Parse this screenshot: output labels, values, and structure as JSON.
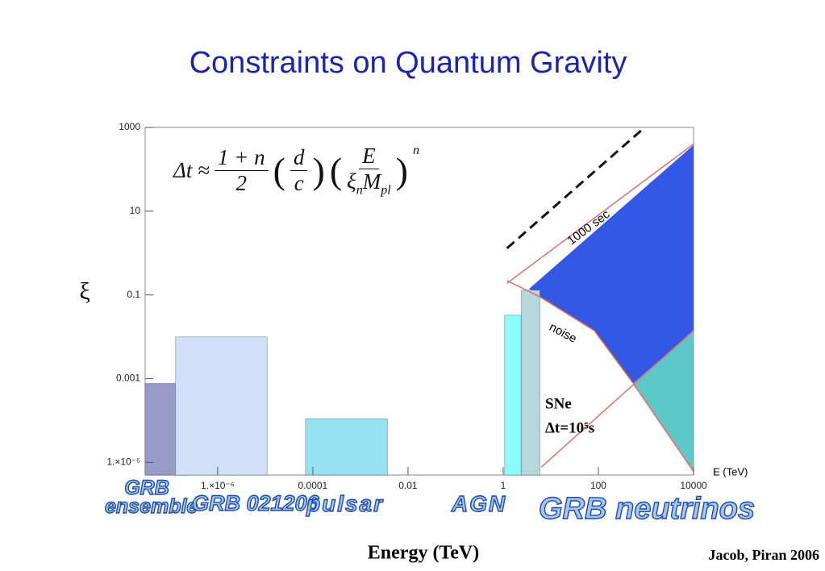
{
  "chart_data": {
    "type": "region",
    "title": "Constraints on Quantum Gravity",
    "xlabel": "Energy (TeV)",
    "xunit_label": "E (TeV)",
    "ylabel": "ξ",
    "xscale": "log",
    "yscale": "log",
    "xlim": [
      3e-08,
      10000
    ],
    "ylim": [
      5e-06,
      1000
    ],
    "xticks": [
      {
        "value": 1e-06,
        "label": "1.×10⁻⁶"
      },
      0.0001,
      0.01,
      1,
      100,
      10000
    ],
    "yticks": [
      {
        "value": 1e-05,
        "label": "1.×10⁻⁵"
      },
      0.001,
      0.1,
      10,
      1000
    ],
    "formula": {
      "lhs": "Δt ≈",
      "num": "1 + n",
      "den": "2",
      "d": "d",
      "c": "c",
      "E": "E",
      "xi": "ξ",
      "xi_sub": "n",
      "M": "M",
      "M_sub": "pl",
      "exp": "n"
    },
    "boxes": [
      {
        "name": "GRB ensemble",
        "color": "#9a9ac8",
        "x": [
          3e-08,
          2.5e-07
        ],
        "top": 0.00077
      },
      {
        "name": "GRB 021206",
        "color": "#cfe0f8",
        "x": [
          1.3e-07,
          1.1e-05
        ],
        "top": 0.01
      },
      {
        "name": "pulsar",
        "color": "#94e2f2",
        "x": [
          7e-05,
          0.0037
        ],
        "top": 0.00011
      },
      {
        "name": "AGN",
        "color": "#8cfcfc",
        "x": [
          1.07,
          2.4
        ],
        "top": 0.033
      },
      {
        "color": "#b6d8dc",
        "x": [
          2.4,
          5.9
        ],
        "top": 0.13
      }
    ],
    "regions": [
      {
        "name": "GRB neutrinos",
        "color": "#3358e6",
        "x": [
          3.5,
          10000,
          10000,
          540,
          82,
          5.9
        ],
        "y": [
          0.14,
          380,
          0.014,
          0.00077,
          0.014,
          0.09
        ]
      },
      {
        "color": "#5cc8c8",
        "x": [
          540,
          10000,
          10000
        ],
        "y": [
          0.00077,
          0.014,
          6e-06
        ]
      }
    ],
    "curves": [
      {
        "color": "#e07070",
        "dashed": false,
        "x": [
          1.2,
          10000
        ],
        "y": [
          0.19,
          400
        ]
      },
      {
        "color": "#e07070",
        "dashed": false,
        "x": [
          1.2,
          5.9,
          82,
          540,
          10000
        ],
        "y": [
          0.22,
          0.09,
          0.014,
          0.00077,
          6e-06
        ]
      },
      {
        "color": "#e07070",
        "dashed": false,
        "x": [
          6.3,
          10000
        ],
        "y": [
          7.7e-06,
          0.014
        ]
      },
      {
        "color": "#111111",
        "dashed": true,
        "x": [
          1.2,
          940
        ],
        "y": [
          1.3,
          1000
        ]
      }
    ],
    "annotations": [
      {
        "text": "1000 sec"
      },
      {
        "text": "noise"
      },
      {
        "text": "SNe"
      },
      {
        "text": "Δt=10⁵s"
      }
    ],
    "credit": "Jacob, Piran 2006"
  }
}
